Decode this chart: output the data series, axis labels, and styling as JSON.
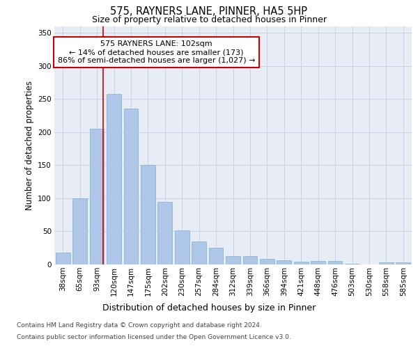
{
  "title_line1": "575, RAYNERS LANE, PINNER, HA5 5HP",
  "title_line2": "Size of property relative to detached houses in Pinner",
  "xlabel": "Distribution of detached houses by size in Pinner",
  "ylabel": "Number of detached properties",
  "categories": [
    "38sqm",
    "65sqm",
    "93sqm",
    "120sqm",
    "147sqm",
    "175sqm",
    "202sqm",
    "230sqm",
    "257sqm",
    "284sqm",
    "312sqm",
    "339sqm",
    "366sqm",
    "394sqm",
    "421sqm",
    "448sqm",
    "476sqm",
    "503sqm",
    "530sqm",
    "558sqm",
    "585sqm"
  ],
  "values": [
    18,
    100,
    205,
    257,
    235,
    150,
    95,
    52,
    35,
    25,
    13,
    13,
    8,
    6,
    4,
    5,
    5,
    1,
    0,
    3,
    3
  ],
  "bar_color": "#aec6e8",
  "bar_edgecolor": "#7fafd4",
  "grid_color": "#c8d4e8",
  "background_color": "#e8edf5",
  "vline_color": "#cc0000",
  "vline_x": 2.35,
  "annotation_text": "575 RAYNERS LANE: 102sqm\n← 14% of detached houses are smaller (173)\n86% of semi-detached houses are larger (1,027) →",
  "annotation_box_facecolor": "#ffffff",
  "annotation_box_edgecolor": "#cc0000",
  "footer_line1": "Contains HM Land Registry data © Crown copyright and database right 2024.",
  "footer_line2": "Contains public sector information licensed under the Open Government Licence v3.0.",
  "ylim": [
    0,
    360
  ],
  "yticks": [
    0,
    50,
    100,
    150,
    200,
    250,
    300,
    350
  ],
  "title1_fontsize": 10.5,
  "title2_fontsize": 9.0,
  "ylabel_fontsize": 8.5,
  "xlabel_fontsize": 9.0,
  "tick_fontsize": 7.5,
  "ann_fontsize": 8.0,
  "footer_fontsize": 6.5
}
